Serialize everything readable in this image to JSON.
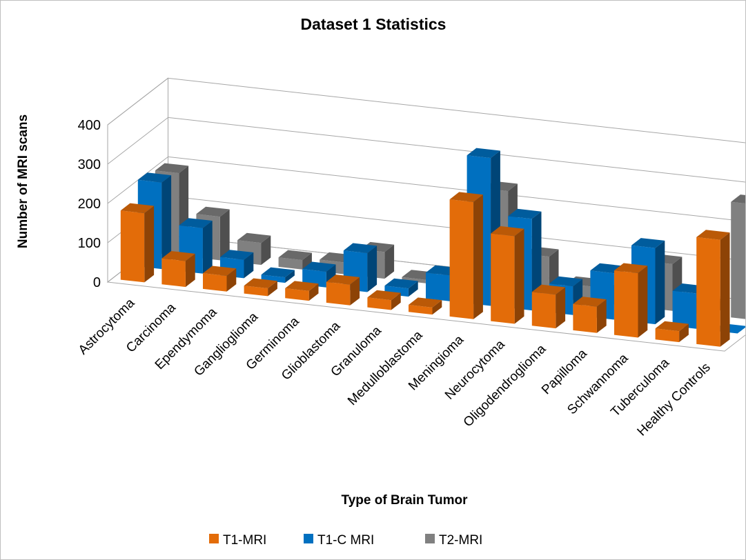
{
  "chart_data": {
    "type": "bar",
    "title": "Dataset 1 Statistics",
    "xlabel": "Type of Brain Tumor",
    "ylabel": "Number of MRI scans",
    "ylim": [
      0,
      400
    ],
    "yticks": [
      0,
      100,
      200,
      300,
      400
    ],
    "grid": true,
    "legend_position": "bottom",
    "categories": [
      "Astrocytoma",
      "Carcinoma",
      "Ependymoma",
      "Ganglioglioma",
      "Germinoma",
      "Glioblastoma",
      "Granuloma",
      "Medulloblastoma",
      "Meningioma",
      "Neurocytoma",
      "Oligodendroglioma",
      "Papilloma",
      "Schwannoma",
      "Tuberculoma",
      "Healthy Controls"
    ],
    "series": [
      {
        "name": "T1-MRI",
        "color": "#e36c09",
        "values": [
          176,
          66,
          40,
          20,
          25,
          53,
          25,
          18,
          298,
          223,
          86,
          67,
          164,
          28,
          272
        ]
      },
      {
        "name": "T1-C MRI",
        "color": "#0070c0",
        "values": [
          220,
          116,
          47,
          14,
          40,
          99,
          21,
          66,
          376,
          233,
          73,
          118,
          194,
          90,
          0
        ]
      },
      {
        "name": "T2-MRI",
        "color": "#808080",
        "values": [
          210,
          111,
          56,
          24,
          30,
          68,
          9,
          30,
          258,
          103,
          39,
          34,
          119,
          24,
          294
        ]
      }
    ]
  }
}
